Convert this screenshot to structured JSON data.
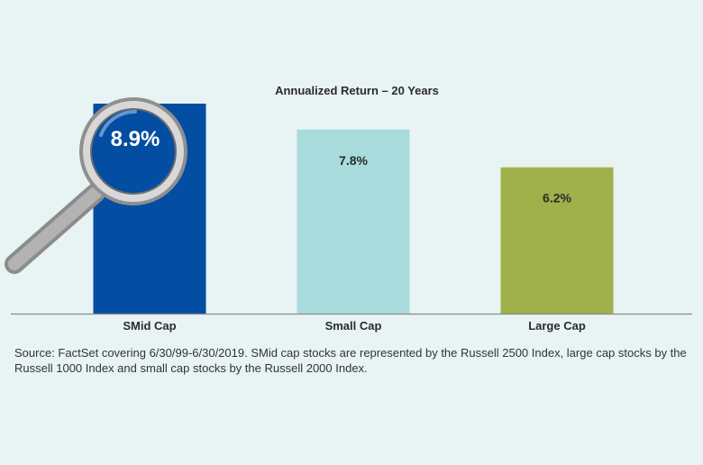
{
  "chart_data": {
    "type": "bar",
    "title": "Annualized Return – 20 Years",
    "categories": [
      "SMid Cap",
      "Small Cap",
      "Large Cap"
    ],
    "values": [
      8.9,
      7.8,
      6.2
    ],
    "value_labels": [
      "8.9%",
      "7.8%",
      "6.2%"
    ],
    "colors": [
      "#034ea2",
      "#a8dcdc",
      "#a0b04a"
    ],
    "xlabel": "",
    "ylabel": "",
    "ylim": [
      0,
      10.5
    ],
    "grid": false,
    "legend": "none",
    "highlight_icon": "magnifying-glass-icon"
  },
  "source_note": "Source: FactSet covering 6/30/99-6/30/2019. SMid cap stocks are represented by the Russell 2500 Index, large cap stocks by the Russell 1000 Index and small cap stocks by the Russell 2000 Index."
}
